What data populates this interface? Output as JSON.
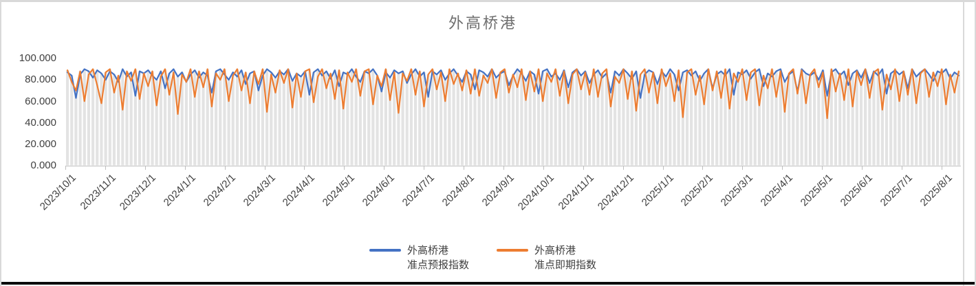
{
  "window": {
    "border_color": "#d9d9d9",
    "bottom_bar_color": "#0b0b0b",
    "background": "#ffffff"
  },
  "chart_data": {
    "type": "line",
    "title": "外高桥港",
    "title_color": "#6e6e6e",
    "grid": false,
    "legend_position": "bottom",
    "ylim": [
      0,
      100
    ],
    "y_tick_labels": [
      "100.000",
      "80.000",
      "60.000",
      "40.000",
      "20.000",
      "0.000"
    ],
    "x_tick_labels": [
      "2023/10/1",
      "2023/11/1",
      "2023/12/1",
      "2024/1/1",
      "2024/2/1",
      "2024/3/1",
      "2024/4/1",
      "2024/5/1",
      "2024/6/1",
      "2024/7/1",
      "2024/8/1",
      "2024/9/1",
      "2024/10/1",
      "2024/11/1",
      "2024/12/1",
      "2025/1/1",
      "2025/2/1",
      "2025/3/1",
      "2025/4/1",
      "2025/5/1",
      "2025/6/1",
      "2025/7/1",
      "2025/8/1"
    ],
    "axis_color": "#bfbfbf",
    "tick_label_color": "#3f3f3f",
    "background_bars": {
      "color": "#e3e3e3",
      "rule": "light gray column behind every data point, height = max of the two series at that point"
    },
    "series": [
      {
        "name": "外高桥港准点预报指数",
        "name_lines": [
          "外高桥港",
          "准点预报指数"
        ],
        "color": "#4472C4",
        "values": [
          87,
          84,
          63,
          85,
          90,
          88,
          82,
          89,
          86,
          80,
          88,
          85,
          78,
          90,
          83,
          87,
          65,
          88,
          86,
          89,
          84,
          80,
          88,
          72,
          86,
          90,
          83,
          87,
          78,
          85,
          89,
          82,
          87,
          84,
          68,
          88,
          90,
          85,
          80,
          87,
          83,
          89,
          76,
          86,
          88,
          70,
          84,
          90,
          87,
          82,
          88,
          85,
          90,
          79,
          86,
          83,
          88,
          66,
          87,
          90,
          84,
          88,
          81,
          89,
          74,
          87,
          85,
          90,
          83,
          78,
          88,
          86,
          90,
          84,
          69,
          87,
          82,
          89,
          86,
          88,
          77,
          85,
          90,
          83,
          87,
          64,
          88,
          85,
          89,
          80,
          86,
          90,
          84,
          78,
          88,
          85,
          71,
          89,
          87,
          83,
          90,
          82,
          86,
          88,
          75,
          84,
          90,
          86,
          79,
          88,
          85,
          67,
          88,
          90,
          83,
          86,
          80,
          89,
          73,
          87,
          90,
          84,
          88,
          77,
          85,
          89,
          82,
          86,
          68,
          88,
          84,
          90,
          86,
          81,
          88,
          63,
          85,
          89,
          87,
          76,
          88,
          83,
          90,
          85,
          70,
          87,
          89,
          84,
          88,
          79,
          86,
          90,
          72,
          85,
          88,
          84,
          90,
          66,
          87,
          85,
          89,
          81,
          87,
          90,
          74,
          86,
          83,
          88,
          90,
          78,
          85,
          88,
          69,
          90,
          86,
          84,
          87,
          80,
          89,
          65,
          87,
          90,
          84,
          88,
          75,
          86,
          89,
          82,
          90,
          77,
          88,
          84,
          90,
          67,
          86,
          89,
          85,
          88,
          72,
          90,
          83,
          87,
          90,
          85,
          79,
          88,
          86,
          90,
          81,
          87,
          84
        ]
      },
      {
        "name": "外高桥港准点即期指数",
        "name_lines": [
          "外高桥港",
          "准点即期指数"
        ],
        "color": "#ED7D31",
        "values": [
          89,
          78,
          70,
          88,
          60,
          85,
          90,
          75,
          58,
          87,
          90,
          68,
          84,
          52,
          88,
          79,
          90,
          62,
          86,
          74,
          88,
          56,
          83,
          90,
          66,
          87,
          48,
          85,
          78,
          90,
          64,
          88,
          73,
          90,
          55,
          86,
          80,
          90,
          60,
          84,
          90,
          70,
          87,
          58,
          88,
          76,
          90,
          50,
          85,
          68,
          89,
          77,
          90,
          54,
          86,
          64,
          88,
          90,
          59,
          83,
          90,
          72,
          86,
          62,
          89,
          53,
          87,
          78,
          90,
          65,
          88,
          90,
          57,
          84,
          74,
          90,
          61,
          87,
          49,
          86,
          79,
          90,
          66,
          88,
          55,
          85,
          90,
          71,
          87,
          60,
          90,
          76,
          86,
          70,
          89,
          67,
          90,
          65,
          84,
          77,
          90,
          63,
          87,
          90,
          68,
          85,
          73,
          90,
          61,
          88,
          69,
          90,
          60,
          86,
          78,
          90,
          65,
          88,
          58,
          85,
          90,
          71,
          87,
          66,
          90,
          64,
          86,
          90,
          55,
          83,
          77,
          90,
          62,
          88,
          51,
          85,
          90,
          68,
          87,
          58,
          90,
          74,
          86,
          60,
          89,
          45,
          87,
          90,
          66,
          84,
          57,
          90,
          70,
          88,
          63,
          90,
          53,
          86,
          78,
          90,
          61,
          87,
          90,
          56,
          84,
          72,
          90,
          64,
          88,
          50,
          86,
          90,
          67,
          89,
          58,
          85,
          90,
          73,
          87,
          44,
          90,
          69,
          86,
          61,
          90,
          55,
          88,
          75,
          90,
          63,
          87,
          90,
          52,
          85,
          71,
          90,
          60,
          88,
          66,
          90,
          58,
          86,
          90,
          64,
          87,
          74,
          90,
          57,
          85,
          68,
          88
        ]
      }
    ]
  }
}
